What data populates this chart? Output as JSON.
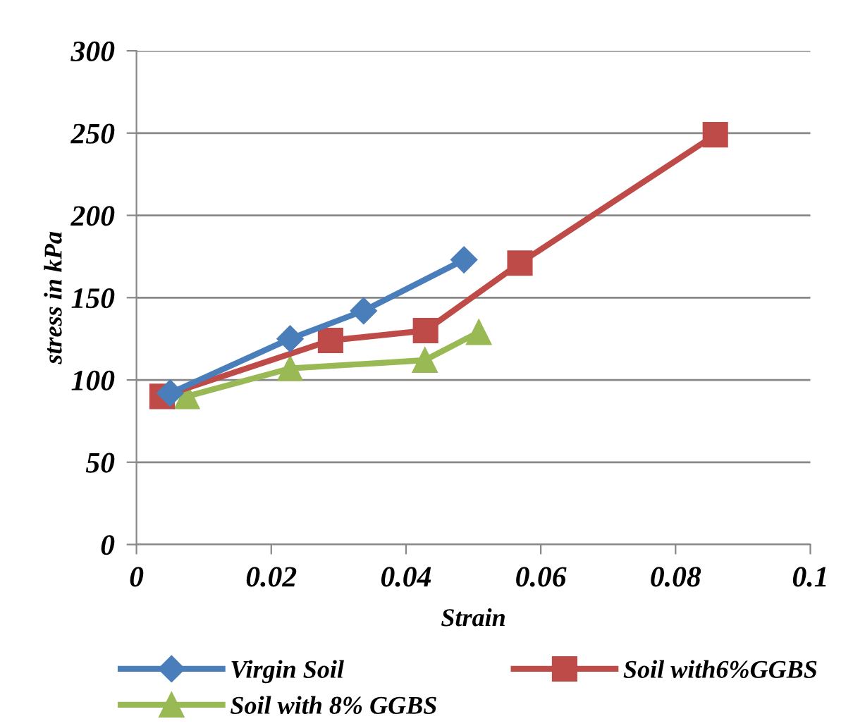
{
  "chart_data": {
    "type": "line",
    "xlabel": "Strain",
    "ylabel": "stress in kPa",
    "xlim": [
      0,
      0.1
    ],
    "xticks": [
      0,
      0.02,
      0.04,
      0.06,
      0.08,
      0.1
    ],
    "ylim": [
      0,
      300
    ],
    "yticks": [
      0,
      50,
      100,
      150,
      200,
      250,
      300
    ],
    "grid": "y",
    "legend": "bottom",
    "series": [
      {
        "name": "Virgin Soil",
        "color": "#4a7ebb",
        "marker": "diamond",
        "x": [
          0.005,
          0.0228,
          0.0337,
          0.0486
        ],
        "values": [
          92,
          125,
          142,
          173
        ]
      },
      {
        "name": "Soil with6%GGBS",
        "color": "#be4b48",
        "marker": "square",
        "x": [
          0.0038,
          0.0288,
          0.0429,
          0.0569,
          0.0859
        ],
        "values": [
          90,
          124,
          130,
          171,
          249
        ]
      },
      {
        "name": "Soil with 8% GGBS",
        "color": "#98b954",
        "marker": "triangle",
        "x": [
          0.0075,
          0.0228,
          0.0428,
          0.0508
        ],
        "values": [
          90,
          107,
          112,
          129
        ]
      }
    ]
  }
}
